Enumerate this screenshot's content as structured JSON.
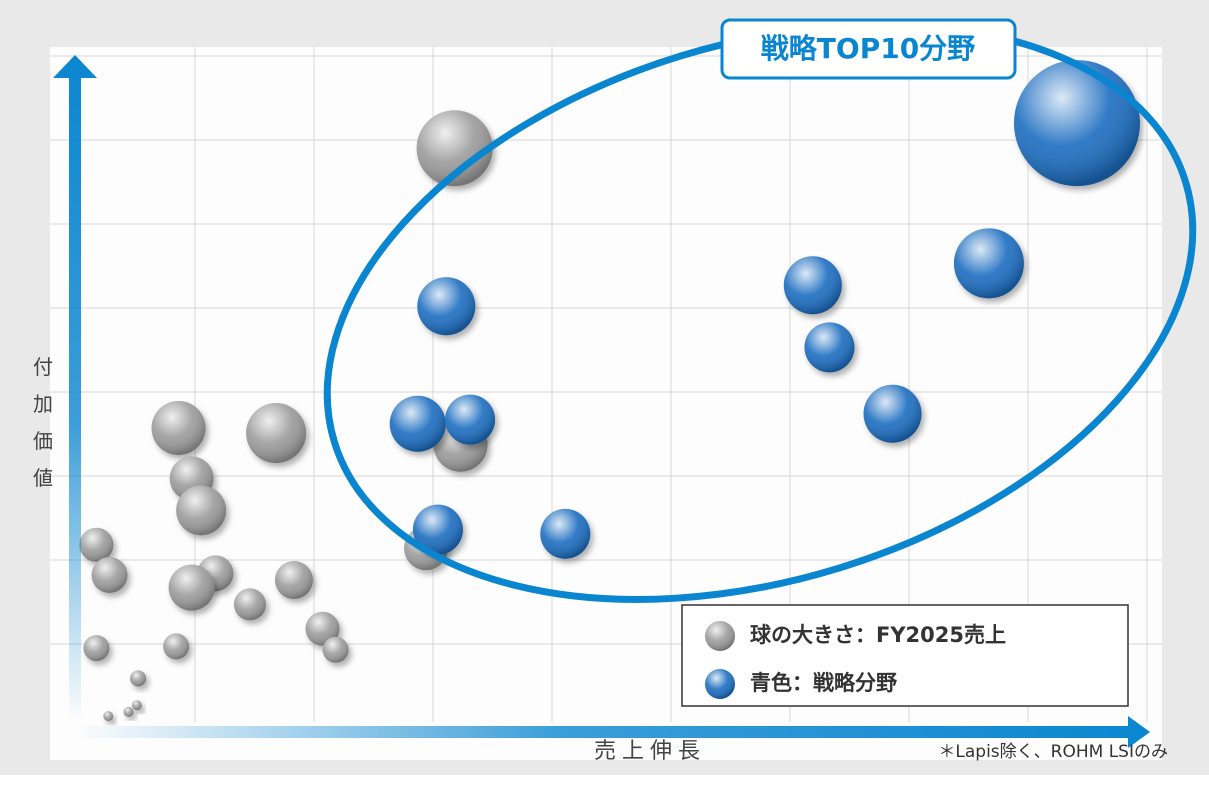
{
  "chart_data": {
    "type": "scatter",
    "annotation": "戦略TOP10分野",
    "ylabel": "付加価値",
    "xlabel": "売上伸長",
    "note": "＊Lapis除く、ROHM LSIのみ",
    "xlim": [
      0,
      9.1
    ],
    "ylim": [
      0,
      8
    ],
    "series": [
      {
        "name": "球の大きさ：FY2025売上",
        "color": "#9a9a9a",
        "x": [
          3.19,
          0.87,
          1.69,
          0.98,
          1.06,
          3.24,
          0.18,
          0.29,
          1.18,
          0.98,
          1.47,
          1.84,
          2.95,
          2.08,
          2.19,
          0.18,
          0.85,
          0.53,
          0.45,
          0.28,
          0.52
        ],
        "values": [
          6.83,
          3.5,
          3.44,
          2.9,
          2.52,
          3.3,
          2.11,
          1.75,
          1.77,
          1.6,
          1.4,
          1.69,
          2.07,
          1.11,
          0.86,
          0.88,
          0.9,
          0.52,
          0.12,
          0.07,
          0.2
        ],
        "sizes": [
          3.8,
          2.7,
          3.0,
          2.2,
          2.5,
          2.7,
          1.7,
          1.8,
          1.8,
          2.3,
          1.6,
          1.9,
          2.2,
          1.7,
          1.3,
          1.3,
          1.3,
          0.8,
          0.5,
          0.5,
          0.5
        ]
      },
      {
        "name": "青色：戦略分野",
        "color": "#1a6cc0",
        "x": [
          8.42,
          7.68,
          6.2,
          3.12,
          6.34,
          6.87,
          2.88,
          3.32,
          3.05,
          4.12
        ],
        "values": [
          7.13,
          5.46,
          5.2,
          4.95,
          4.46,
          3.67,
          3.55,
          3.6,
          2.29,
          2.24
        ],
        "sizes": [
          6.3,
          3.5,
          2.9,
          2.9,
          2.5,
          2.9,
          2.8,
          2.5,
          2.5,
          2.5
        ]
      }
    ]
  }
}
